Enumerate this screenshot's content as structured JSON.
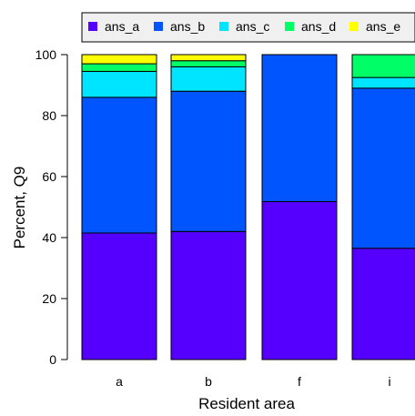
{
  "chart_data": {
    "type": "bar",
    "stacked": true,
    "categories": [
      "a",
      "b",
      "f",
      "i"
    ],
    "series": [
      {
        "name": "ans_a",
        "color": "#5500ff",
        "values": [
          41.5,
          42.0,
          51.8,
          36.5
        ]
      },
      {
        "name": "ans_b",
        "color": "#0055ff",
        "values": [
          44.5,
          46.0,
          48.2,
          52.5
        ]
      },
      {
        "name": "ans_c",
        "color": "#00e5ff",
        "values": [
          8.5,
          8.0,
          0.0,
          3.5
        ]
      },
      {
        "name": "ans_d",
        "color": "#00ff66",
        "values": [
          2.5,
          2.0,
          0.0,
          7.5
        ]
      },
      {
        "name": "ans_e",
        "color": "#ffff00",
        "values": [
          3.0,
          2.0,
          0.0,
          0.0
        ]
      }
    ],
    "xlabel": "Resident area",
    "ylabel": "Percent, Q9",
    "ylim": [
      0,
      100
    ],
    "yticks": [
      0,
      20,
      40,
      60,
      80,
      100
    ],
    "grid": false,
    "legend": {
      "placement": "top",
      "background": "#f0f0f0"
    }
  }
}
